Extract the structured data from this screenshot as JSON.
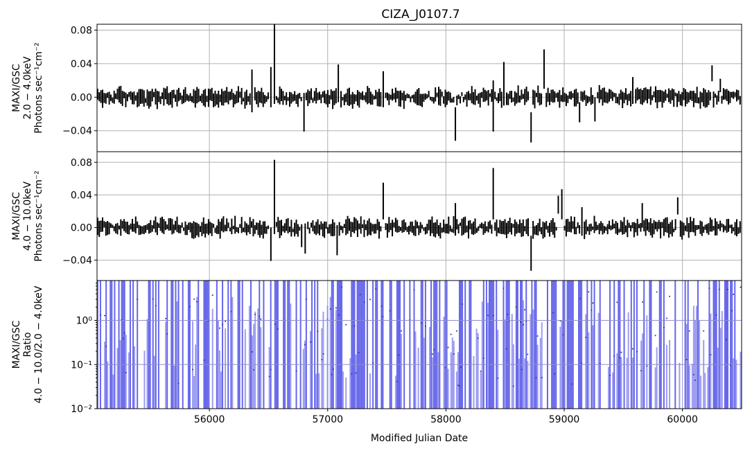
{
  "chart_data": {
    "title": "CIZA_J0107.7",
    "xlabel": "Modified Julian Date",
    "x_range": [
      55050,
      60500
    ],
    "x_ticks": [
      56000,
      57000,
      58000,
      59000,
      60000
    ],
    "x_tick_labels": [
      "56000",
      "57000",
      "58000",
      "59000",
      "60000"
    ],
    "panels": [
      {
        "type": "scatter",
        "series_style": "errorbar",
        "color": "#000000",
        "ylabel_lines": [
          "MAXI/GSC",
          "2.0 − 4.0keV",
          "Photons sec⁻¹cm⁻²"
        ],
        "ylim": [
          -0.065,
          0.087
        ],
        "y_ticks": [
          -0.04,
          0.0,
          0.04,
          0.08
        ],
        "y_tick_labels": [
          "−0.04",
          "0.00",
          "0.04",
          "0.08"
        ],
        "grid": true,
        "spikes": [
          {
            "x": 56360,
            "lo": -0.018,
            "hi": 0.033
          },
          {
            "x": 56520,
            "lo": -0.012,
            "hi": 0.036
          },
          {
            "x": 56550,
            "lo": -0.008,
            "hi": 0.087
          },
          {
            "x": 56800,
            "lo": -0.041,
            "hi": 0.005
          },
          {
            "x": 57090,
            "lo": -0.006,
            "hi": 0.039
          },
          {
            "x": 57470,
            "lo": -0.012,
            "hi": 0.031
          },
          {
            "x": 58080,
            "lo": -0.052,
            "hi": -0.012
          },
          {
            "x": 58400,
            "lo": -0.041,
            "hi": 0.02
          },
          {
            "x": 58490,
            "lo": -0.01,
            "hi": 0.042
          },
          {
            "x": 58720,
            "lo": -0.054,
            "hi": -0.018
          },
          {
            "x": 58830,
            "lo": 0.01,
            "hi": 0.057
          },
          {
            "x": 59130,
            "lo": -0.03,
            "hi": -0.006
          },
          {
            "x": 59260,
            "lo": -0.029,
            "hi": 0.0
          },
          {
            "x": 59580,
            "lo": -0.008,
            "hi": 0.024
          },
          {
            "x": 60250,
            "lo": 0.019,
            "hi": 0.038
          },
          {
            "x": 60320,
            "lo": 0.006,
            "hi": 0.022
          }
        ]
      },
      {
        "type": "scatter",
        "series_style": "errorbar",
        "color": "#000000",
        "ylabel_lines": [
          "MAXI/GSC",
          "4.0 − 10.0keV",
          "Photons sec⁻¹cm⁻²"
        ],
        "ylim": [
          -0.065,
          0.093
        ],
        "y_ticks": [
          -0.04,
          0.0,
          0.04,
          0.08
        ],
        "y_tick_labels": [
          "−0.04",
          "0.00",
          "0.04",
          "0.08"
        ],
        "grid": true,
        "spikes": [
          {
            "x": 56520,
            "lo": -0.041,
            "hi": 0.0
          },
          {
            "x": 56550,
            "lo": -0.008,
            "hi": 0.083
          },
          {
            "x": 56780,
            "lo": -0.024,
            "hi": 0.004
          },
          {
            "x": 56810,
            "lo": -0.032,
            "hi": 0.005
          },
          {
            "x": 57080,
            "lo": -0.034,
            "hi": 0.003
          },
          {
            "x": 57470,
            "lo": 0.01,
            "hi": 0.055
          },
          {
            "x": 58080,
            "lo": -0.01,
            "hi": 0.03
          },
          {
            "x": 58400,
            "lo": 0.01,
            "hi": 0.073
          },
          {
            "x": 58720,
            "lo": -0.053,
            "hi": -0.01
          },
          {
            "x": 58950,
            "lo": 0.017,
            "hi": 0.039
          },
          {
            "x": 58980,
            "lo": 0.01,
            "hi": 0.047
          },
          {
            "x": 59150,
            "lo": -0.01,
            "hi": 0.025
          },
          {
            "x": 59660,
            "lo": 0.0,
            "hi": 0.03
          },
          {
            "x": 59960,
            "lo": 0.016,
            "hi": 0.037
          }
        ]
      },
      {
        "type": "scatter",
        "series_style": "errorbar",
        "color": "#4a4ae8",
        "ylabel_lines": [
          "MAXI/GSC",
          "Ratio",
          "4.0 − 10.0/2.0 − 4.0keV"
        ],
        "yscale": "log",
        "ylim": [
          0.01,
          8.0
        ],
        "y_ticks": [
          0.01,
          0.1,
          1.0
        ],
        "y_tick_labels": [
          "10⁻²",
          "10⁻¹",
          "10⁰"
        ],
        "grid": true
      }
    ]
  }
}
